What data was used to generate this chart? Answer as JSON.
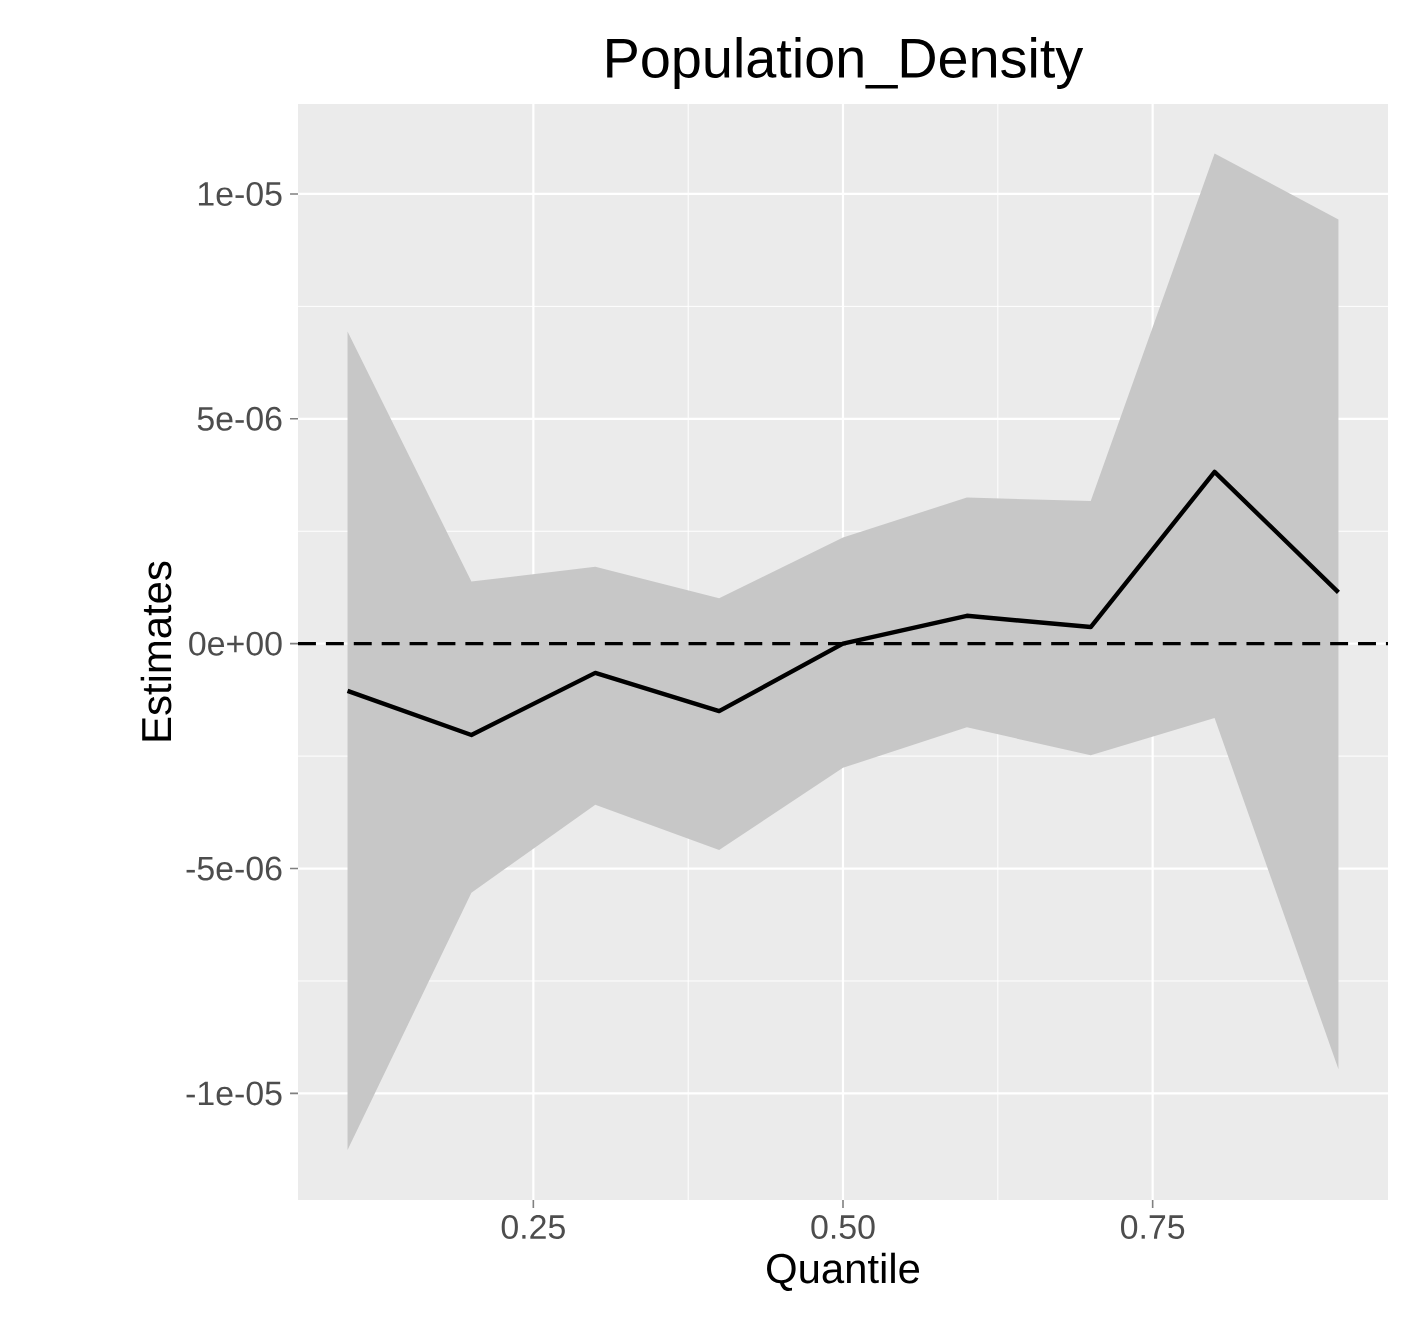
{
  "chart_data": {
    "type": "line",
    "title": "Population_Density",
    "xlabel": "Quantile",
    "ylabel": "Estimates",
    "x": [
      0.1,
      0.2,
      0.3,
      0.4,
      0.5,
      0.6,
      0.7,
      0.8,
      0.9
    ],
    "series": [
      {
        "color": "#000000",
        "values": [
          -1.05e-06,
          -2.03e-06,
          -6.5e-07,
          -1.5e-06,
          0,
          6.2e-07,
          3.7e-07,
          3.82e-06,
          1.14e-06
        ],
        "lower": [
          -1.126e-05,
          -5.54e-06,
          -3.58e-06,
          -4.59e-06,
          -2.76e-06,
          -1.86e-06,
          -2.48e-06,
          -1.65e-06,
          -9.46e-06
        ],
        "upper": [
          6.94e-06,
          1.38e-06,
          1.71e-06,
          1.01e-06,
          2.36e-06,
          3.25e-06,
          3.17e-06,
          1.09e-05,
          9.43e-06
        ]
      }
    ],
    "xlim": [
      0.06,
      0.94
    ],
    "ylim": [
      -1.237e-05,
      1.2e-05
    ],
    "xticks": [
      {
        "value": 0.25,
        "label": "0.25"
      },
      {
        "value": 0.5,
        "label": "0.50"
      },
      {
        "value": 0.75,
        "label": "0.75"
      }
    ],
    "yticks": [
      {
        "value": -1e-05,
        "label": "-1e-05"
      },
      {
        "value": -5e-06,
        "label": "-5e-06"
      },
      {
        "value": 0,
        "label": "0e+00"
      },
      {
        "value": 5e-06,
        "label": "5e-06"
      },
      {
        "value": 1e-05,
        "label": "1e-05"
      }
    ],
    "ref_lines": [
      {
        "axis": "y",
        "value": 0,
        "line_style": "dashed",
        "color": "#000000"
      }
    ],
    "grid": true,
    "legend": false,
    "marker": "none",
    "line_style": "solid"
  }
}
